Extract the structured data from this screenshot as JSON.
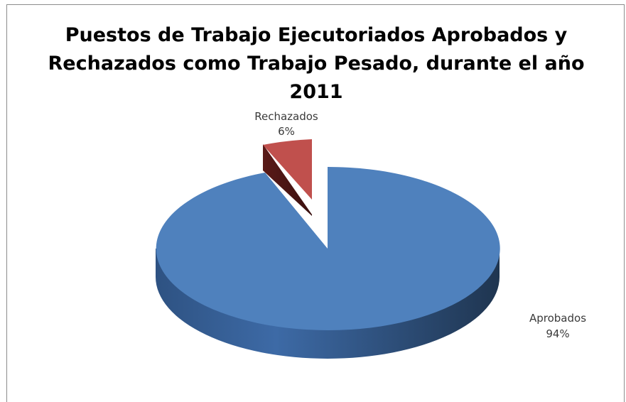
{
  "chart_data": {
    "type": "pie",
    "title": "Puestos de Trabajo Ejecutoriados Aprobados y Rechazados como Trabajo Pesado, durante el año 2011",
    "slices": [
      {
        "name": "Aprobados",
        "label": "Aprobados",
        "percent_label": "94%",
        "value": 94,
        "color": "#4f81bd"
      },
      {
        "name": "Rechazados",
        "label": "Rechazados",
        "percent_label": "6%",
        "value": 6,
        "color": "#c0504d"
      }
    ],
    "style": "3d-exploded",
    "legend": "none",
    "data_labels": "outside"
  }
}
